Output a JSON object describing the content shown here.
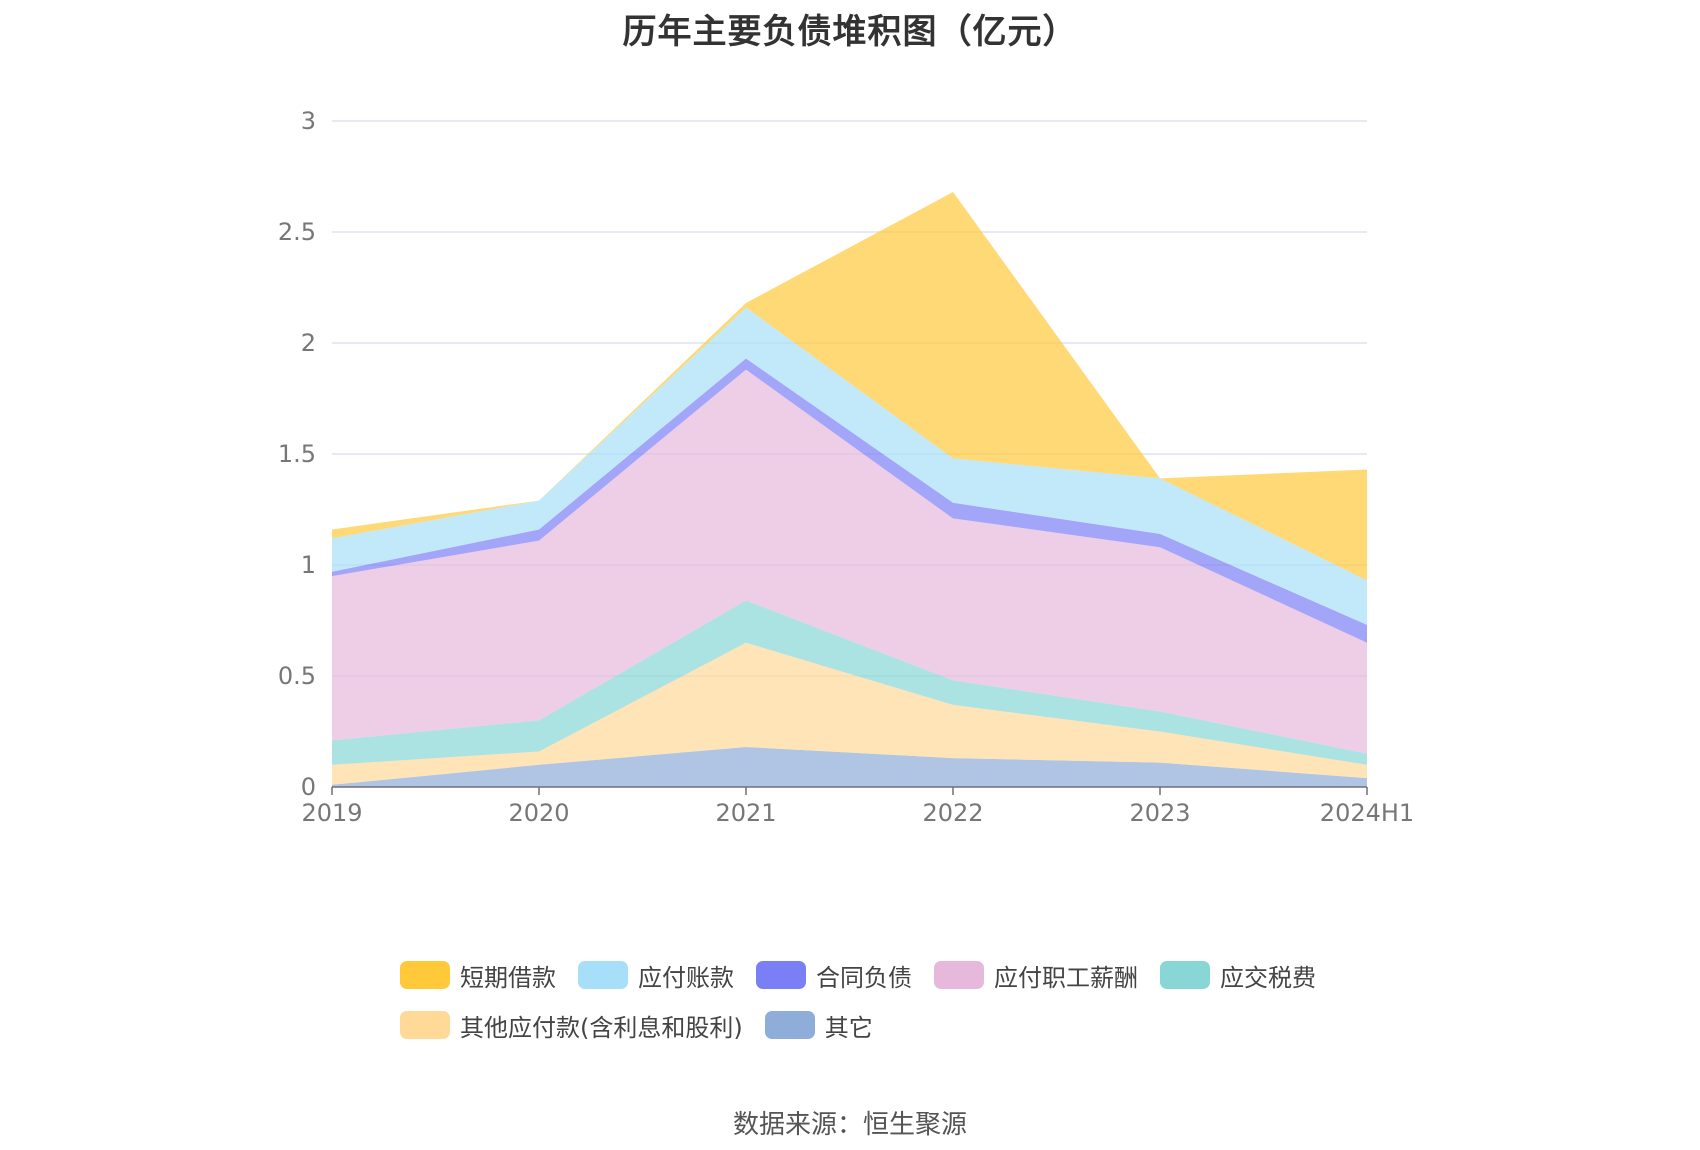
{
  "title": "历年主要负债堆积图（亿元）",
  "source": "数据来源：恒生聚源",
  "chart_data": {
    "type": "area",
    "stacked": true,
    "title": "历年主要负债堆积图（亿元）",
    "categories": [
      "2019",
      "2020",
      "2021",
      "2022",
      "2023",
      "2024H1"
    ],
    "ylim": [
      0,
      3
    ],
    "yticks": [
      "0",
      "0.5",
      "1",
      "1.5",
      "2",
      "2.5",
      "3"
    ],
    "grid": true,
    "legend_position": "bottom",
    "series": [
      {
        "name": "其它",
        "color": "#8fadd9",
        "values": [
          0.01,
          0.1,
          0.18,
          0.13,
          0.11,
          0.04
        ]
      },
      {
        "name": "其他应付款(含利息和股利)",
        "color": "#ffd998",
        "values": [
          0.09,
          0.06,
          0.47,
          0.24,
          0.14,
          0.06
        ]
      },
      {
        "name": "应交税费",
        "color": "#88d6d6",
        "values": [
          0.11,
          0.14,
          0.19,
          0.11,
          0.09,
          0.05
        ]
      },
      {
        "name": "应付职工薪酬",
        "color": "#e6b9dc",
        "values": [
          0.74,
          0.81,
          1.04,
          0.73,
          0.74,
          0.5
        ]
      },
      {
        "name": "合同负债",
        "color": "#7b7ff5",
        "values": [
          0.02,
          0.05,
          0.05,
          0.07,
          0.06,
          0.08
        ]
      },
      {
        "name": "应付账款",
        "color": "#a8dff8",
        "values": [
          0.15,
          0.13,
          0.23,
          0.2,
          0.25,
          0.2
        ]
      },
      {
        "name": "短期借款",
        "color": "#ffc93a",
        "values": [
          0.04,
          0.0,
          0.02,
          1.2,
          0.0,
          0.5
        ]
      }
    ]
  },
  "legend": {
    "row1": [
      {
        "label": "短期借款",
        "color": "#ffc93a"
      },
      {
        "label": "应付账款",
        "color": "#a8dff8"
      },
      {
        "label": "合同负债",
        "color": "#7b7ff5"
      },
      {
        "label": "应付职工薪酬",
        "color": "#e6b9dc"
      },
      {
        "label": "应交税费",
        "color": "#88d6d6"
      }
    ],
    "row2": [
      {
        "label": "其他应付款(含利息和股利)",
        "color": "#ffd998"
      },
      {
        "label": "其它",
        "color": "#8fadd9"
      }
    ]
  }
}
